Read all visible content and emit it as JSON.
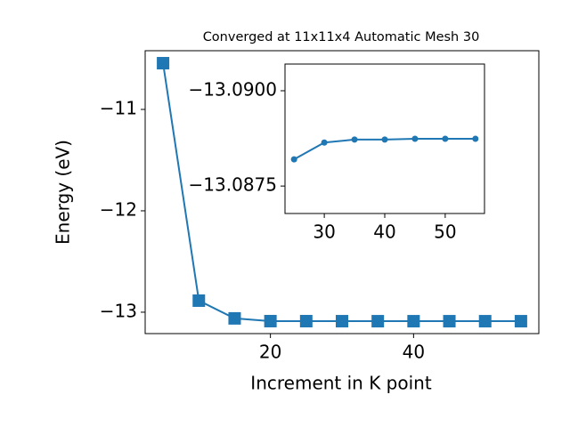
{
  "chart_data": [
    {
      "type": "line",
      "title": "Converged at 11x11x4 Automatic Mesh 30",
      "x_label": "Increment in K point",
      "y_label": "Energy (eV)",
      "x": [
        5,
        10,
        15,
        20,
        25,
        30,
        35,
        40,
        45,
        50,
        55
      ],
      "values": [
        -10.544,
        -12.886,
        -13.061,
        -13.088,
        -13.0882,
        -13.0886,
        -13.0887,
        -13.0887,
        -13.0887,
        -13.0887,
        -13.0887
      ],
      "color": "#1f77b4",
      "marker": "square",
      "xlim": [
        2.5,
        57.5
      ],
      "xticks": [
        20,
        40
      ],
      "ylim": [
        -13.211,
        -10.421
      ],
      "yticks": [
        {
          "value": -13,
          "label": "−13"
        },
        {
          "value": -12,
          "label": "−12"
        },
        {
          "value": -11,
          "label": "−11"
        }
      ]
    },
    {
      "type": "line",
      "x": [
        25,
        30,
        35,
        40,
        45,
        50,
        55
      ],
      "values": [
        -13.0882,
        -13.08864,
        -13.08872,
        -13.08872,
        -13.08874,
        -13.08874,
        -13.08874
      ],
      "color": "#1f77b4",
      "marker": "circle",
      "xlim": [
        23.5,
        56.5
      ],
      "xticks": [
        30,
        40,
        50
      ],
      "ylim": [
        -13.08678,
        -13.0907
      ],
      "yticks": [
        {
          "value": -13.09,
          "label": "−13.0900"
        },
        {
          "value": -13.0875,
          "label": "−13.0875"
        }
      ]
    }
  ]
}
